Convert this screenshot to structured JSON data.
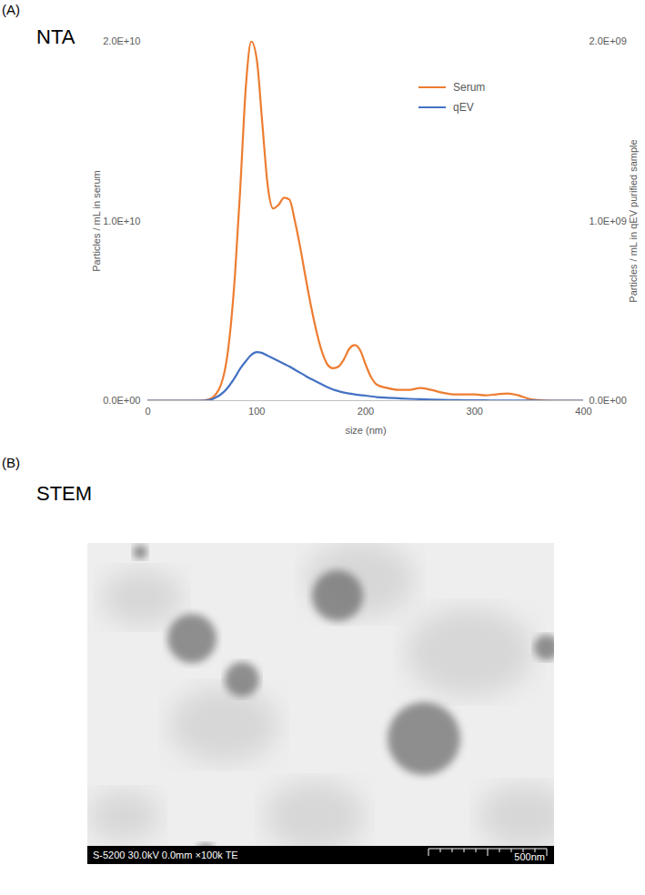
{
  "chart_data": {
    "type": "line",
    "panel_label": "(A)",
    "title": "NTA",
    "xlabel": "size (nm)",
    "ylabel": "Particles / mL in serum",
    "y2label": "Particles / mL in qEV purified sample",
    "x": [
      0,
      40,
      50,
      55,
      60,
      70,
      75,
      80,
      85,
      90,
      95,
      100,
      105,
      110,
      115,
      120,
      125,
      130,
      135,
      140,
      145,
      150,
      155,
      160,
      165,
      170,
      175,
      180,
      185,
      190,
      195,
      200,
      205,
      210,
      220,
      230,
      240,
      250,
      260,
      270,
      280,
      290,
      300,
      310,
      320,
      330,
      340,
      350,
      360,
      370,
      400
    ],
    "xlim": [
      0,
      400
    ],
    "xticks": [
      0,
      100,
      200,
      300,
      400
    ],
    "ylim": [
      0,
      20000000000
    ],
    "yticks": [
      {
        "value": 0,
        "label": "0.0E+00"
      },
      {
        "value": 10000000000,
        "label": "1.0E+10"
      },
      {
        "value": 20000000000,
        "label": "2.0E+10"
      }
    ],
    "y2lim": [
      0,
      2000000000
    ],
    "y2ticks": [
      {
        "value": 0,
        "label": "0.0E+00"
      },
      {
        "value": 1000000000,
        "label": "1.0E+09"
      },
      {
        "value": 2000000000,
        "label": "2.0E+09"
      }
    ],
    "series": [
      {
        "name": "Serum",
        "color": "#ed7d31",
        "values": [
          0,
          0,
          10000000,
          60000000,
          200000000,
          1500000000,
          3500000000,
          7000000000,
          12000000000,
          17500000000,
          20000000000,
          19000000000,
          15500000000,
          12000000000,
          10700000000,
          10900000000,
          11300000000,
          11200000000,
          10000000000,
          8500000000,
          6800000000,
          5200000000,
          3800000000,
          2700000000,
          2000000000,
          1800000000,
          1900000000,
          2300000000,
          2900000000,
          3100000000,
          2800000000,
          2000000000,
          1300000000,
          900000000,
          700000000,
          600000000,
          600000000,
          700000000,
          600000000,
          450000000,
          350000000,
          350000000,
          350000000,
          300000000,
          350000000,
          400000000,
          300000000,
          100000000,
          30000000,
          0,
          0
        ]
      },
      {
        "name": "qEV",
        "color": "#4472c4",
        "axis": "y2",
        "values": [
          0,
          0,
          0,
          2000000,
          10000000,
          50000000,
          85000000,
          130000000,
          180000000,
          220000000,
          255000000,
          270000000,
          265000000,
          250000000,
          235000000,
          220000000,
          205000000,
          190000000,
          172000000,
          155000000,
          137000000,
          120000000,
          105000000,
          90000000,
          75000000,
          62000000,
          53000000,
          45000000,
          40000000,
          35000000,
          31000000,
          28000000,
          24000000,
          20000000,
          16000000,
          13000000,
          10000000,
          8000000,
          6000000,
          4000000,
          3000000,
          2500000,
          2000000,
          1500000,
          1000000,
          700000,
          400000,
          200000,
          100000,
          0,
          0
        ]
      }
    ],
    "legend": "top-right",
    "grid": false
  },
  "panel_b": {
    "panel_label": "(B)",
    "title": "STEM",
    "image_caption": "S-5200 30.0kV 0.0mm ×100k TE",
    "scale_bar_label": "500nm"
  }
}
